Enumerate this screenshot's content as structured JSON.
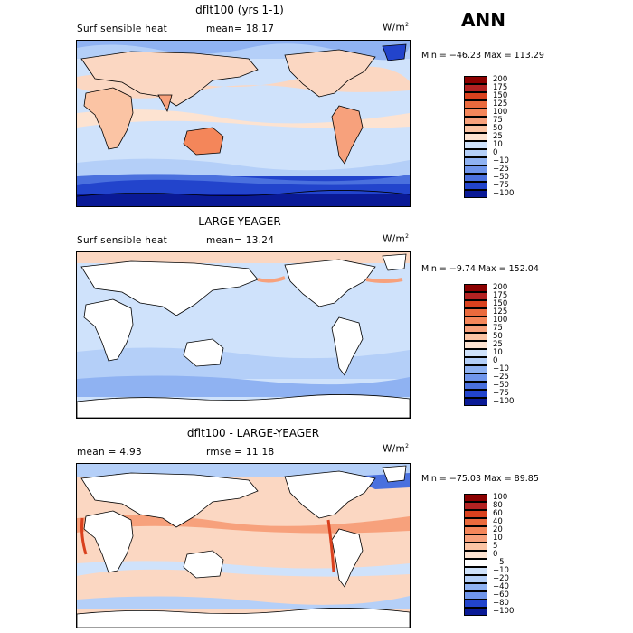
{
  "season": "ANN",
  "panels": [
    {
      "title": "dflt100 (yrs 1-1)",
      "left_label": "Surf sensible heat",
      "mean_label": "mean=  18.17",
      "units": "W/m",
      "units_sup": "2",
      "minmax": "Min = −46.23 Max = 113.29",
      "colorbar": {
        "labels": [
          "200",
          "175",
          "150",
          "125",
          "100",
          "75",
          "50",
          "25",
          "10",
          "0",
          "−10",
          "−25",
          "−50",
          "−75",
          "−100"
        ],
        "colors": [
          "#8b0000",
          "#b22222",
          "#d9411e",
          "#ea6a3d",
          "#f4865a",
          "#f7a17c",
          "#fbc4a4",
          "#fde3d1",
          "#cfe2fb",
          "#b4cff8",
          "#8fb2f2",
          "#6f95eb",
          "#4a70de",
          "#2244cc",
          "#0a1a96"
        ]
      }
    },
    {
      "title": "LARGE-YEAGER",
      "left_label": "Surf sensible heat",
      "mean_label": "mean=  13.24",
      "units": "W/m",
      "units_sup": "2",
      "minmax": "Min =  −9.74 Max = 152.04",
      "colorbar": {
        "labels": [
          "200",
          "175",
          "150",
          "125",
          "100",
          "75",
          "50",
          "25",
          "10",
          "0",
          "−10",
          "−25",
          "−50",
          "−75",
          "−100"
        ],
        "colors": [
          "#8b0000",
          "#b22222",
          "#d9411e",
          "#ea6a3d",
          "#f4865a",
          "#f7a17c",
          "#fbc4a4",
          "#fde3d1",
          "#cfe2fb",
          "#b4cff8",
          "#8fb2f2",
          "#6f95eb",
          "#4a70de",
          "#2244cc",
          "#0a1a96"
        ]
      }
    },
    {
      "title": "dflt100 - LARGE-YEAGER",
      "left_label": "mean =   4.93",
      "mean_label": "rmse =  11.18",
      "units": "W/m",
      "units_sup": "2",
      "minmax": "Min = −75.03 Max =  89.85",
      "colorbar": {
        "labels": [
          "100",
          "80",
          "60",
          "40",
          "20",
          "10",
          "5",
          "0",
          "−5",
          "−10",
          "−20",
          "−40",
          "−60",
          "−80",
          "−100"
        ],
        "colors": [
          "#8b0000",
          "#b22222",
          "#d9411e",
          "#ea6a3d",
          "#f4865a",
          "#f7a17c",
          "#fbc4a4",
          "#fde3d1",
          "#ffffff",
          "#cfe2fb",
          "#b4cff8",
          "#8fb2f2",
          "#6f95eb",
          "#2244cc",
          "#0a1a96"
        ]
      }
    }
  ],
  "style": {
    "ocean_light": "#cfe2fb",
    "ocean_mid": "#b4cff8",
    "warm_light": "#fbd7c2",
    "warm_mid": "#f7a17c",
    "blue_strong": "#2244cc",
    "land": "#ffffff"
  }
}
